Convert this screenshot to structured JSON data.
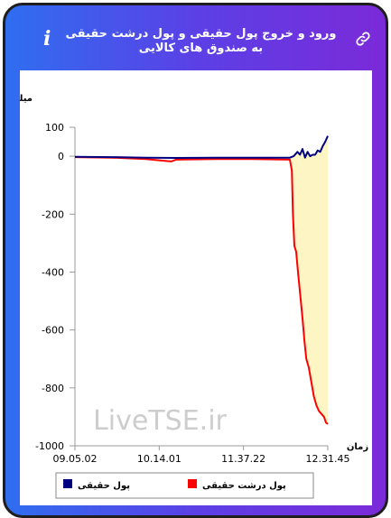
{
  "header": {
    "title": "ورود و خروج پول حقیقی و پول درشت حقیقی به صندوق های کالایی",
    "info_icon": "info-icon",
    "link_icon": "link-icon"
  },
  "watermark": "LiveTSE.ir",
  "chart_data": {
    "type": "line",
    "ylabel": "میلیارد تومان",
    "xlabel": "زمان",
    "ylim": [
      -1000,
      100
    ],
    "yticks": [
      100,
      0,
      -200,
      -400,
      -600,
      -800,
      -1000
    ],
    "xticks": [
      "09.05.02",
      "10.14.01",
      "11.37.22",
      "12.31.45"
    ],
    "xrange": [
      0,
      100
    ],
    "grid": false,
    "legend": "bottom",
    "series": [
      {
        "name": "پول حقیقی",
        "color": "#000080",
        "x": [
          0,
          15,
          28,
          40,
          55,
          70,
          85,
          86.5,
          88,
          89,
          90,
          91,
          92,
          93,
          94,
          95,
          96,
          97,
          98,
          99,
          100
        ],
        "y": [
          -2,
          -3,
          -5,
          -6,
          -5,
          -5,
          -5,
          0,
          15,
          5,
          25,
          -5,
          15,
          0,
          5,
          5,
          20,
          15,
          35,
          50,
          70
        ]
      },
      {
        "name": "پول درشت حقیقی",
        "color": "#ff0000",
        "x": [
          0,
          15,
          28,
          38,
          40,
          55,
          70,
          85,
          85.8,
          86.2,
          86.8,
          87.5,
          88.2,
          89,
          90,
          90.8,
          91.5,
          92.5,
          93.5,
          94.5,
          95.5,
          96.5,
          97.5,
          98.5,
          99.3,
          100
        ],
        "y": [
          -3,
          -5,
          -10,
          -18,
          -12,
          -10,
          -10,
          -12,
          -50,
          -200,
          -310,
          -330,
          -400,
          -470,
          -560,
          -640,
          -700,
          -730,
          -780,
          -830,
          -860,
          -880,
          -890,
          -900,
          -920,
          -925
        ]
      }
    ]
  }
}
